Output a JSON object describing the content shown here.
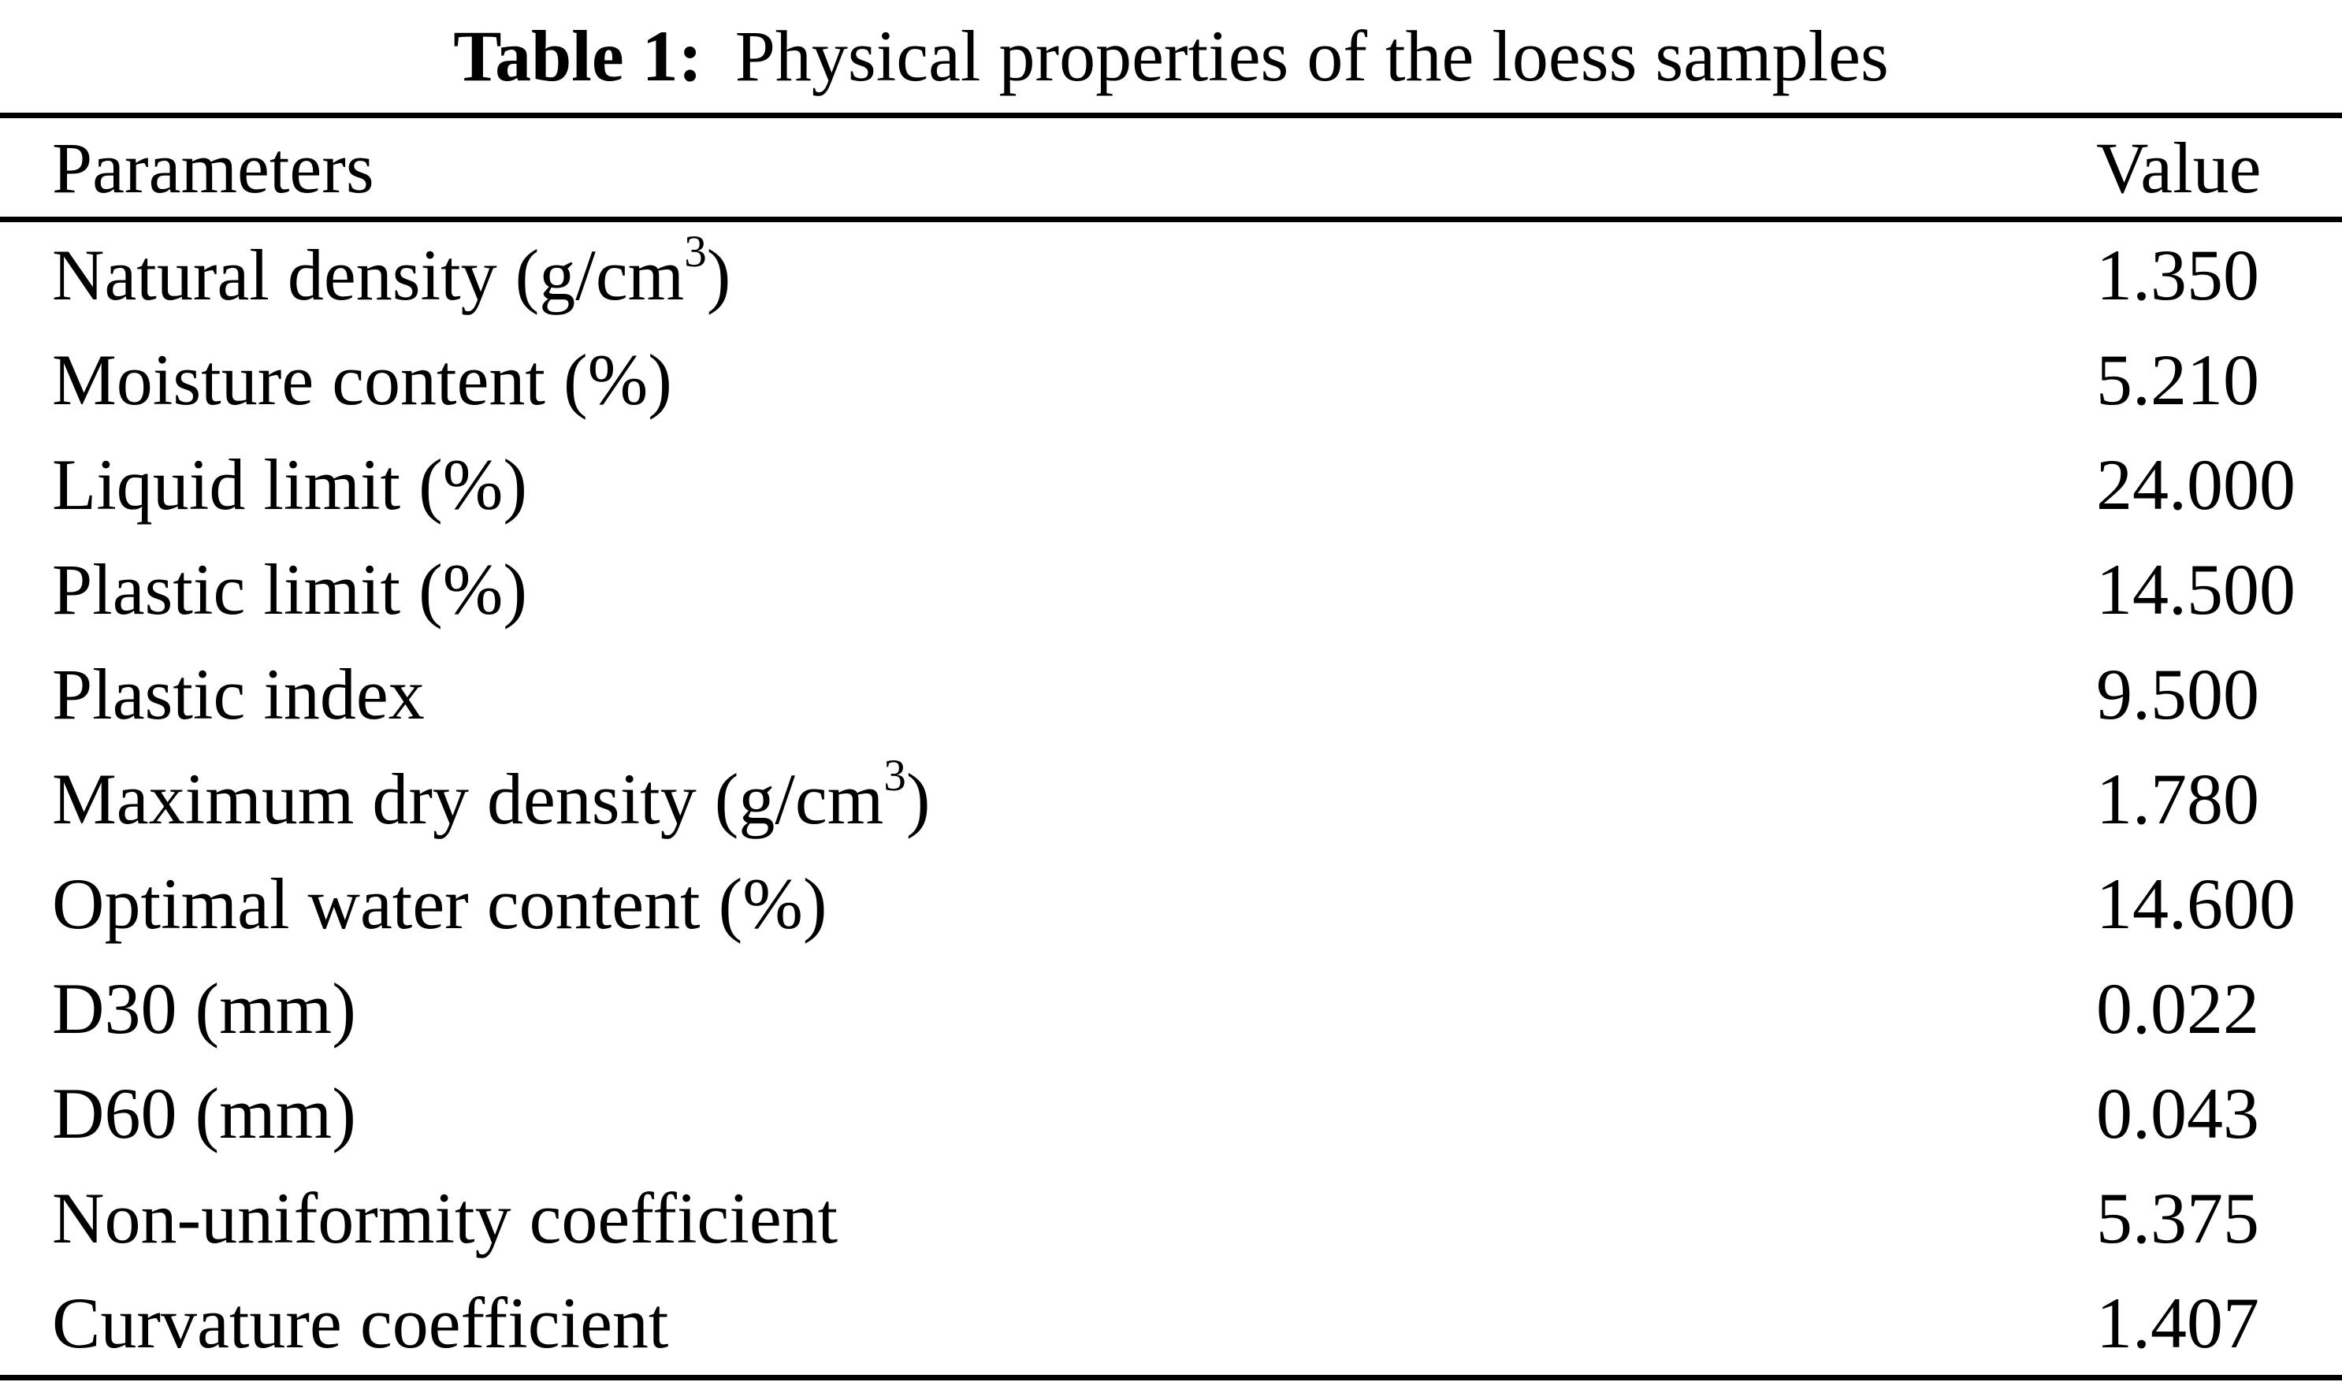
{
  "title": {
    "label": "Table 1:",
    "text": "Physical properties of the loess samples"
  },
  "table": {
    "columns": [
      "Parameters",
      "Value"
    ],
    "rows": [
      {
        "parameter": [
          [
            "Natural density (g/cm",
            false
          ],
          [
            "3",
            true
          ],
          [
            ")",
            false
          ]
        ],
        "value": "1.350"
      },
      {
        "parameter": [
          [
            "Moisture content (%)",
            false
          ]
        ],
        "value": "5.210"
      },
      {
        "parameter": [
          [
            "Liquid limit (%)",
            false
          ]
        ],
        "value": "24.000"
      },
      {
        "parameter": [
          [
            "Plastic limit (%)",
            false
          ]
        ],
        "value": "14.500"
      },
      {
        "parameter": [
          [
            "Plastic index",
            false
          ]
        ],
        "value": "9.500"
      },
      {
        "parameter": [
          [
            "Maximum dry density (g/cm",
            false
          ],
          [
            "3",
            true
          ],
          [
            ")",
            false
          ]
        ],
        "value": "1.780"
      },
      {
        "parameter": [
          [
            "Optimal water content (%)",
            false
          ]
        ],
        "value": "14.600"
      },
      {
        "parameter": [
          [
            "D30 (mm)",
            false
          ]
        ],
        "value": "0.022"
      },
      {
        "parameter": [
          [
            "D60 (mm)",
            false
          ]
        ],
        "value": "0.043"
      },
      {
        "parameter": [
          [
            "Non-uniformity coefficient",
            false
          ]
        ],
        "value": "5.375"
      },
      {
        "parameter": [
          [
            "Curvature coefficient",
            false
          ]
        ],
        "value": "1.407"
      }
    ]
  },
  "colors": {
    "background": "#ffffff",
    "text": "#000000",
    "rule": "#000000"
  }
}
